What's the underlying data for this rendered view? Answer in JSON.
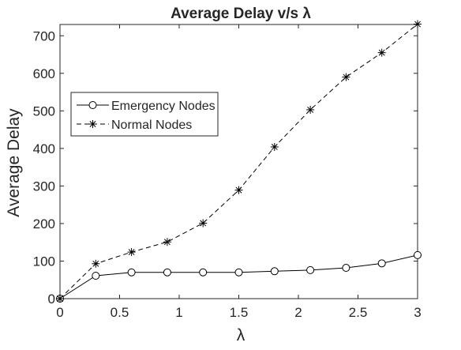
{
  "chart_data": {
    "type": "line",
    "title": "Average Delay v/s λ",
    "xlabel": "λ",
    "ylabel": "Average Delay",
    "xlim": [
      0,
      3
    ],
    "ylim": [
      0,
      730
    ],
    "xticks": [
      0,
      0.5,
      1,
      1.5,
      2,
      2.5,
      3
    ],
    "xtick_labels": [
      "0",
      "0.5",
      "1",
      "1.5",
      "2",
      "2.5",
      "3"
    ],
    "yticks": [
      0,
      100,
      200,
      300,
      400,
      500,
      600,
      700
    ],
    "ytick_labels": [
      "0",
      "100",
      "200",
      "300",
      "400",
      "500",
      "600",
      "700"
    ],
    "grid": false,
    "legend_position": "upper-left",
    "x": [
      0,
      0.3,
      0.6,
      0.9,
      1.2,
      1.5,
      1.8,
      2.1,
      2.4,
      2.7,
      3.0
    ],
    "series": [
      {
        "name": "Emergency Nodes",
        "marker": "circle",
        "line_style": "solid",
        "color": "#000000",
        "values": [
          0,
          61,
          70,
          70,
          70,
          70,
          73,
          76,
          82,
          94,
          116
        ]
      },
      {
        "name": "Normal Nodes",
        "marker": "asterisk",
        "line_style": "dashed",
        "color": "#000000",
        "values": [
          0,
          93,
          124,
          151,
          201,
          289,
          404,
          503,
          590,
          655,
          731
        ]
      }
    ]
  }
}
